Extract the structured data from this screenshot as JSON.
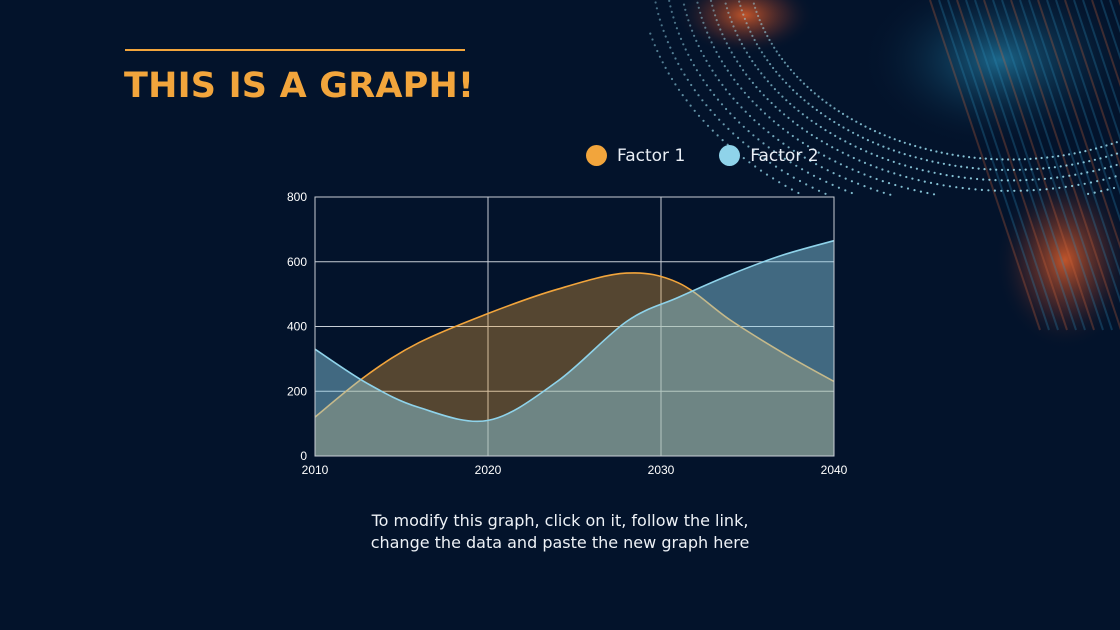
{
  "slide": {
    "title": "THIS IS A GRAPH!",
    "caption_lines": [
      "To modify this graph, click on it, follow the link,",
      "change the data and paste the new graph here"
    ]
  },
  "colors": {
    "background": "#03132b",
    "accent": "#f2a53c",
    "factor1": "#f2a53c",
    "factor2": "#8fd3ea"
  },
  "chart_data": {
    "type": "area",
    "x": [
      2010,
      2013,
      2016,
      2020,
      2024,
      2028,
      2031,
      2034,
      2037,
      2040
    ],
    "series": [
      {
        "name": "Factor 1",
        "values": [
          120,
          250,
          350,
          440,
          515,
          565,
          535,
          420,
          320,
          230
        ]
      },
      {
        "name": "Factor 2",
        "values": [
          330,
          225,
          150,
          110,
          230,
          415,
          490,
          560,
          620,
          665
        ]
      }
    ],
    "xticks": [
      2010,
      2020,
      2030,
      2040
    ],
    "yticks": [
      0,
      200,
      400,
      600,
      800
    ],
    "xlim": [
      2010,
      2040
    ],
    "ylim": [
      0,
      800
    ],
    "grid": true,
    "legend_position": "top-right"
  }
}
